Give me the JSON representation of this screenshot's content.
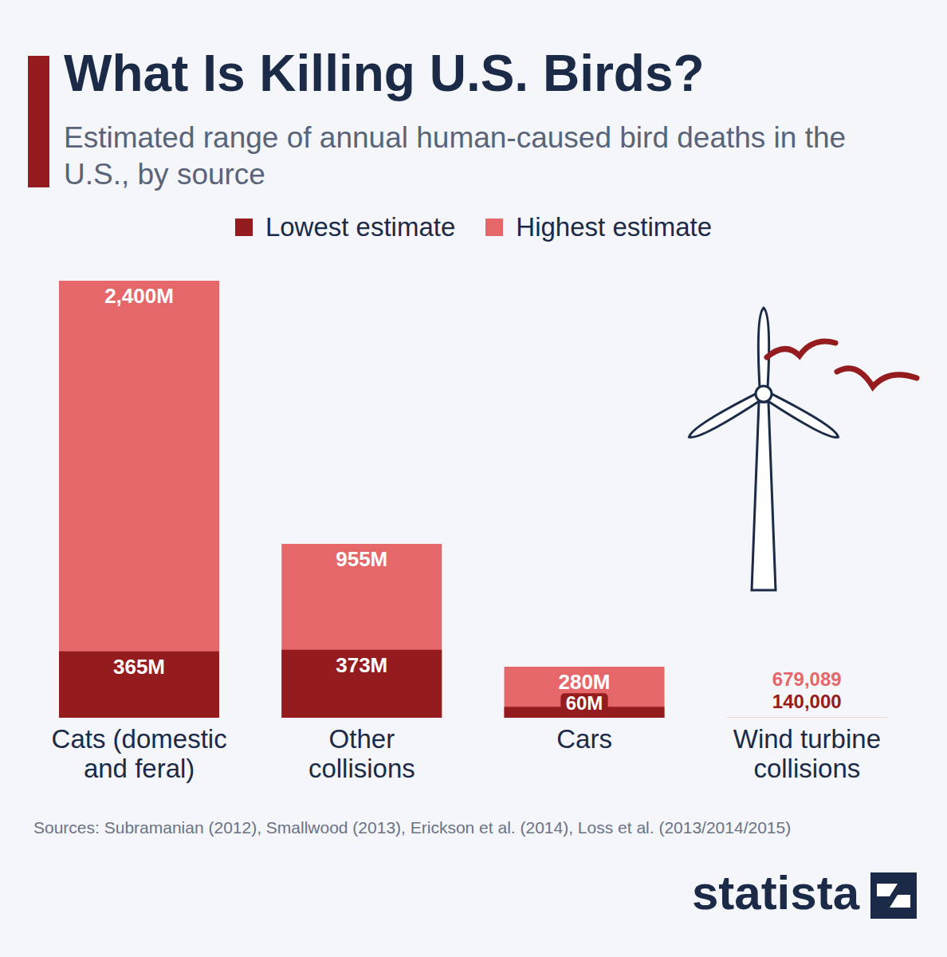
{
  "chart_data": {
    "type": "bar",
    "title": "What Is Killing U.S. Birds?",
    "subtitle": "Estimated range of annual human-caused bird deaths in the U.S., by source",
    "categories": [
      "Cats (domestic and feral)",
      "Other collisions",
      "Cars",
      "Wind turbine collisions"
    ],
    "series": [
      {
        "name": "Lowest estimate",
        "color": "#951c1e",
        "values": [
          365000000,
          373000000,
          60000000,
          140000
        ],
        "value_labels": [
          "365M",
          "373M",
          "60M",
          "140,000"
        ]
      },
      {
        "name": "Highest estimate",
        "color": "#e5676a",
        "values": [
          2400000000,
          955000000,
          280000000,
          679089
        ],
        "value_labels": [
          "2,400M",
          "955M",
          "280M",
          "679,089"
        ]
      }
    ],
    "ylim": [
      0,
      2400000000
    ],
    "stacked": false,
    "data_labels": true,
    "tick_labels": "x",
    "legend": "top",
    "source": "Sources: Subramanian (2012), Smallwood (2013), Erickson et al. (2014), Loss et al. (2013/2014/2015)",
    "brand": "statista"
  }
}
